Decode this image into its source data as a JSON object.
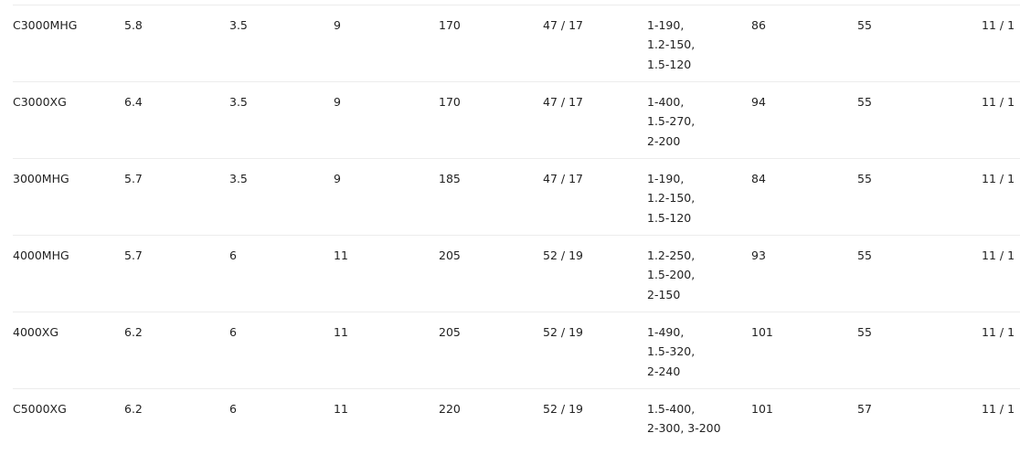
{
  "table": {
    "rows": [
      {
        "model": "C3000MHG",
        "c1": "5.8",
        "c2": "3.5",
        "c3": "9",
        "c4": "170",
        "c5": "47 / 17",
        "line": [
          "1-190,",
          "1.2-150,",
          "1.5-120"
        ],
        "c7": "86",
        "c8": "55",
        "c9": "11 / 1"
      },
      {
        "model": "C3000XG",
        "c1": "6.4",
        "c2": "3.5",
        "c3": "9",
        "c4": "170",
        "c5": "47 / 17",
        "line": [
          "1-400,",
          "1.5-270,",
          "2-200"
        ],
        "c7": "94",
        "c8": "55",
        "c9": "11 / 1"
      },
      {
        "model": "3000MHG",
        "c1": "5.7",
        "c2": "3.5",
        "c3": "9",
        "c4": "185",
        "c5": "47 / 17",
        "line": [
          "1-190,",
          "1.2-150,",
          "1.5-120"
        ],
        "c7": "84",
        "c8": "55",
        "c9": "11 / 1"
      },
      {
        "model": "4000MHG",
        "c1": "5.7",
        "c2": "6",
        "c3": "11",
        "c4": "205",
        "c5": "52 / 19",
        "line": [
          "1.2-250,",
          "1.5-200,",
          "2-150"
        ],
        "c7": "93",
        "c8": "55",
        "c9": "11 / 1"
      },
      {
        "model": "4000XG",
        "c1": "6.2",
        "c2": "6",
        "c3": "11",
        "c4": "205",
        "c5": "52 / 19",
        "line": [
          "1-490,",
          "1.5-320,",
          "2-240"
        ],
        "c7": "101",
        "c8": "55",
        "c9": "11 / 1"
      },
      {
        "model": "C5000XG",
        "c1": "6.2",
        "c2": "6",
        "c3": "11",
        "c4": "220",
        "c5": "52 / 19",
        "line": [
          "1.5-400,",
          "2-300, 3-200"
        ],
        "c7": "101",
        "c8": "57",
        "c9": "11 / 1"
      }
    ]
  }
}
